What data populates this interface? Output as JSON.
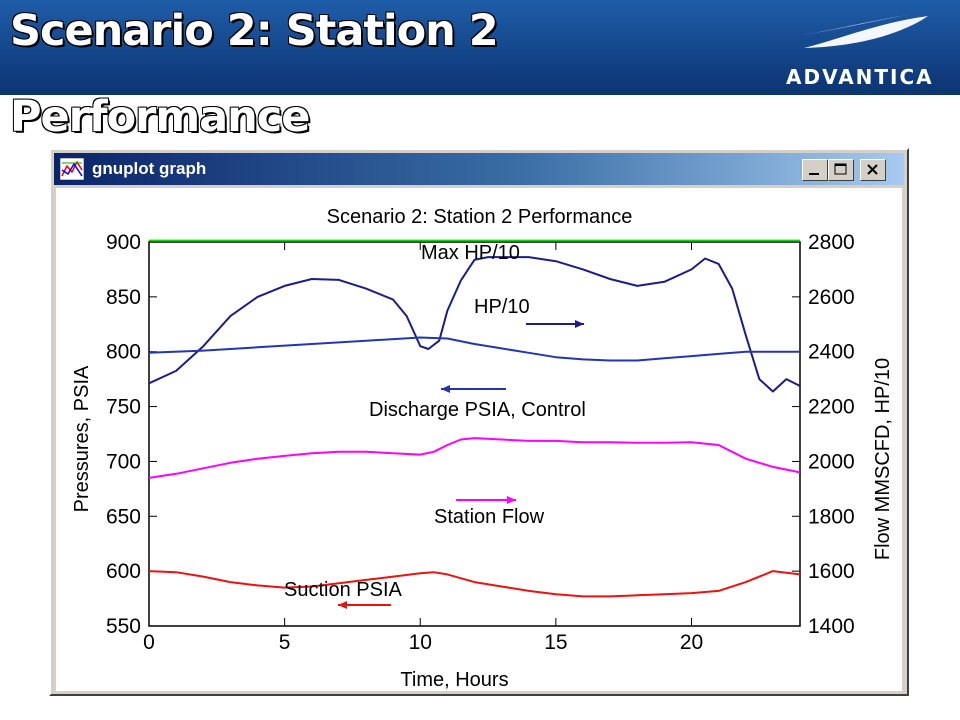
{
  "slide": {
    "title": "Scenario 2: Station 2",
    "subtitle": "Performance",
    "brand": "ADVANTICA",
    "brand_color": "#14468a"
  },
  "window": {
    "title": "gnuplot graph",
    "controls": [
      "minimize",
      "maximize",
      "close"
    ]
  },
  "chart_data": {
    "type": "line",
    "title": "Scenario 2: Station 2 Performance",
    "xlabel": "Time, Hours",
    "ylabel": "Pressures, PSIA",
    "y2label": "Flow MMSCFD, HP/10",
    "xlim": [
      0,
      24
    ],
    "ylim": [
      550,
      900
    ],
    "y2lim": [
      1400,
      2800
    ],
    "xticks": [
      "0",
      "5",
      "10",
      "15",
      "20"
    ],
    "yticks": [
      "900",
      "850",
      "800",
      "750",
      "700",
      "650",
      "600",
      "550"
    ],
    "y2ticks": [
      "2800",
      "2600",
      "2400",
      "2200",
      "2000",
      "1800",
      "1600",
      "1400"
    ],
    "grid": false,
    "series": [
      {
        "name": "Max HP/10",
        "axis": "y2",
        "color": "#00dd00",
        "x": [
          0,
          24
        ],
        "y": [
          2805,
          2805
        ]
      },
      {
        "name": "HP/10",
        "axis": "y2",
        "color": "#1c1c8c",
        "x": [
          0,
          1,
          2,
          3,
          4,
          5,
          6,
          7,
          8,
          9,
          9.5,
          10,
          10.3,
          10.7,
          11,
          11.5,
          12,
          12.5,
          14,
          15,
          16,
          17,
          18,
          19,
          20,
          20.5,
          21,
          21.5,
          22,
          22.5,
          23,
          23.5,
          24
        ],
        "y": [
          2285,
          2330,
          2420,
          2530,
          2600,
          2640,
          2665,
          2662,
          2630,
          2590,
          2530,
          2420,
          2410,
          2440,
          2550,
          2660,
          2735,
          2745,
          2745,
          2730,
          2700,
          2665,
          2640,
          2655,
          2700,
          2740,
          2720,
          2630,
          2460,
          2300,
          2255,
          2300,
          2275
        ]
      },
      {
        "name": "Discharge PSIA, Control",
        "axis": "y",
        "color": "#2236b4",
        "x": [
          0,
          2,
          4,
          6,
          8,
          10,
          11,
          12,
          13,
          14,
          15,
          16,
          17,
          18,
          19,
          20,
          21,
          22,
          24
        ],
        "y": [
          799,
          801,
          804,
          807,
          810,
          813,
          812,
          807,
          803,
          799,
          795,
          793,
          792,
          792,
          794,
          796,
          798,
          800,
          800
        ]
      },
      {
        "name": "Station Flow",
        "axis": "y2",
        "color": "#ff00ff",
        "x": [
          0,
          1,
          2,
          3,
          4,
          5,
          6,
          7,
          8,
          9,
          10,
          10.5,
          11,
          11.5,
          12,
          13,
          14,
          15,
          16,
          17,
          18,
          19,
          20,
          21,
          22,
          23,
          24
        ],
        "y": [
          1940,
          1955,
          1975,
          1995,
          2010,
          2020,
          2030,
          2035,
          2035,
          2030,
          2025,
          2035,
          2060,
          2080,
          2085,
          2080,
          2075,
          2075,
          2070,
          2070,
          2068,
          2068,
          2070,
          2060,
          2010,
          1980,
          1960
        ]
      },
      {
        "name": "Suction PSIA",
        "axis": "y",
        "color": "#ee1111",
        "x": [
          0,
          1,
          2,
          3,
          4,
          5,
          6,
          7,
          8,
          9,
          10,
          10.5,
          11,
          12,
          13,
          14,
          15,
          16,
          17,
          18,
          19,
          20,
          21,
          22,
          23,
          24
        ],
        "y": [
          600,
          599,
          595,
          590,
          587,
          585,
          586,
          589,
          592,
          595,
          598,
          599,
          597,
          590,
          586,
          582,
          579,
          577,
          577,
          578,
          579,
          580,
          582,
          590,
          600,
          597
        ]
      }
    ],
    "annotations": [
      {
        "text": "Max HP/10",
        "series": "Max HP/10"
      },
      {
        "text": "HP/10",
        "series": "HP/10"
      },
      {
        "text": "Discharge PSIA, Control",
        "series": "Discharge PSIA, Control"
      },
      {
        "text": "Station Flow",
        "series": "Station Flow"
      },
      {
        "text": "Suction PSIA",
        "series": "Suction PSIA"
      }
    ]
  }
}
